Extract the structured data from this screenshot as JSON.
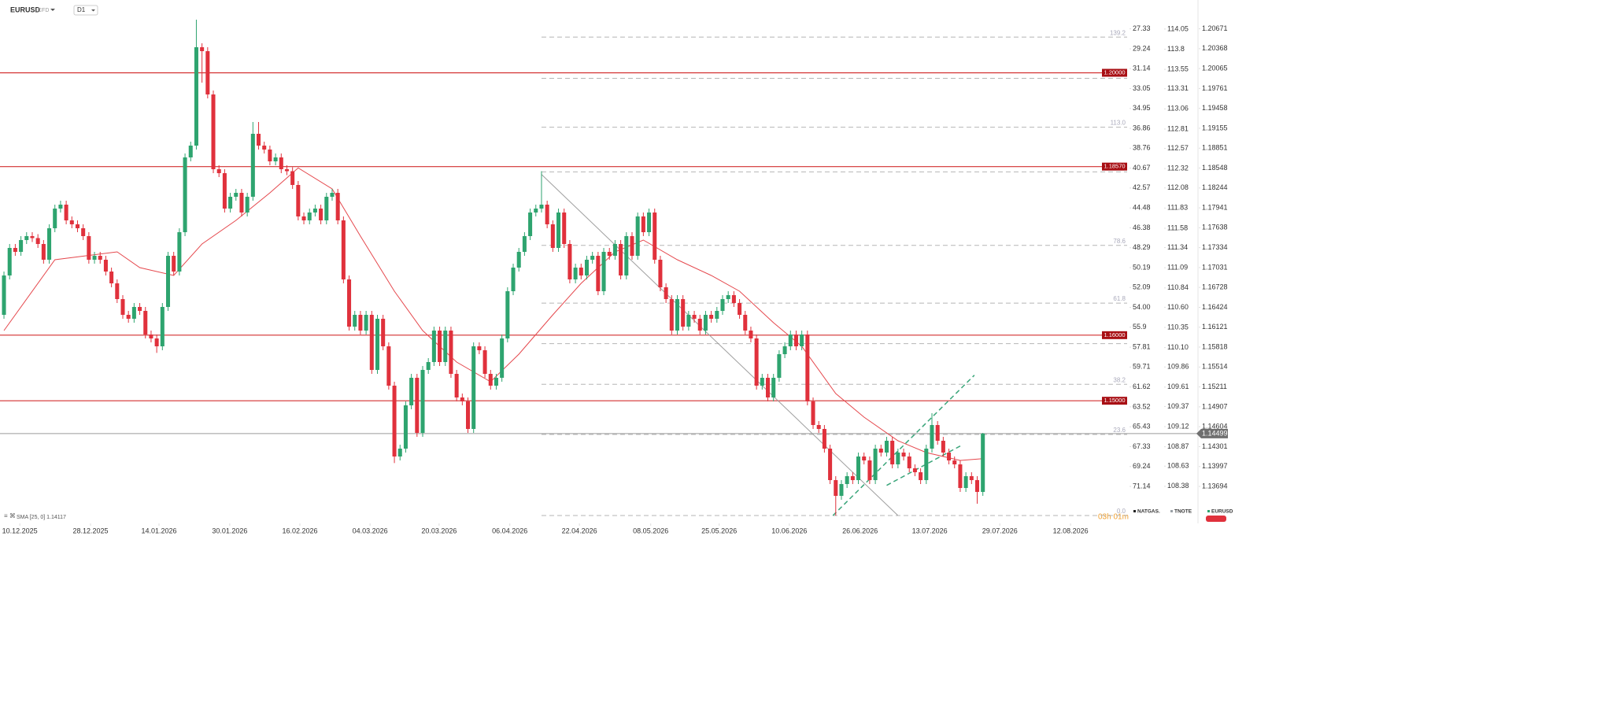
{
  "header": {
    "symbol": "EURUSD",
    "kind": "CFD",
    "timeframe": "D1",
    "timer": "03h 01m"
  },
  "chart_data": {
    "type": "candlestick",
    "up_color": "#2ea46f",
    "down_color": "#e0313c",
    "open": [
      1.1631,
      1.1691,
      1.1733,
      1.1727,
      1.1745,
      1.1751,
      1.1748,
      1.1739,
      1.1715,
      1.1763,
      1.1793,
      1.1799,
      1.1775,
      1.1769,
      1.1763,
      1.1751,
      1.1715,
      1.1721,
      1.1715,
      1.1697,
      1.1679,
      1.1655,
      1.1631,
      1.1625,
      1.1643,
      1.1637,
      1.1601,
      1.1595,
      1.1583,
      1.1643,
      1.1721,
      1.1697,
      1.1757,
      1.1871,
      1.1889,
      1.2039,
      1.2033,
      1.1967,
      1.1853,
      1.1847,
      1.1793,
      1.1811,
      1.1817,
      1.1787,
      1.1811,
      1.1907,
      1.1889,
      1.1883,
      1.1865,
      1.1871,
      1.1853,
      1.185,
      1.1829,
      1.1781,
      1.1775,
      1.1787,
      1.1793,
      1.1775,
      1.1811,
      1.1817,
      1.1775,
      1.1685,
      1.1613,
      1.1631,
      1.1607,
      1.1631,
      1.1547,
      1.1625,
      1.1583,
      1.1523,
      1.1415,
      1.1427,
      1.1493,
      1.1535,
      1.1451,
      1.1547,
      1.1559,
      1.1607,
      1.1559,
      1.1607,
      1.1541,
      1.1505,
      1.1499,
      1.1457,
      1.1583,
      1.1577,
      1.1541,
      1.1523,
      1.1535,
      1.1595,
      1.1667,
      1.1703,
      1.1727,
      1.1751,
      1.1787,
      1.1793,
      1.1799,
      1.1769,
      1.1733,
      1.1787,
      1.1739,
      1.1685,
      1.1703,
      1.1691,
      1.1715,
      1.1721,
      1.1667,
      1.1727,
      1.1721,
      1.1739,
      1.1691,
      1.1751,
      1.1721,
      1.1781,
      1.1757,
      1.1787,
      1.1715,
      1.1673,
      1.1655,
      1.1607,
      1.1655,
      1.1613,
      1.1631,
      1.1625,
      1.1607,
      1.1631,
      1.1625,
      1.1637,
      1.1655,
      1.1661,
      1.1649,
      1.1631,
      1.1607,
      1.1595,
      1.1523,
      1.1535,
      1.1505,
      1.1535,
      1.1571,
      1.1583,
      1.1601,
      1.1583,
      1.1601,
      1.1499,
      1.1463,
      1.1457,
      1.1427,
      1.1379,
      1.1355,
      1.1373,
      1.1385,
      1.1379,
      1.1415,
      1.1409,
      1.1379,
      1.1427,
      1.1421,
      1.1439,
      1.1403,
      1.1421,
      1.1415,
      1.1397,
      1.1391,
      1.1379,
      1.1427,
      1.1463,
      1.1439,
      1.1421,
      1.1409,
      1.1403,
      1.1367,
      1.1385,
      1.1379,
      1.1361
    ],
    "high": [
      1.1697,
      1.1739,
      1.1739,
      1.1751,
      1.1757,
      1.1757,
      1.1754,
      1.1745,
      1.1769,
      1.1799,
      1.1805,
      1.1805,
      1.1781,
      1.1775,
      1.1769,
      1.1757,
      1.1727,
      1.1727,
      1.1721,
      1.1703,
      1.1685,
      1.1661,
      1.1637,
      1.1649,
      1.1649,
      1.1643,
      1.1607,
      1.1601,
      1.1649,
      1.1727,
      1.1727,
      1.1763,
      1.1877,
      1.1895,
      1.2081,
      1.2045,
      1.2039,
      1.1973,
      1.1859,
      1.1853,
      1.1817,
      1.1823,
      1.1823,
      1.1817,
      1.1925,
      1.1925,
      1.1895,
      1.1889,
      1.1877,
      1.1877,
      1.1859,
      1.1856,
      1.1835,
      1.1787,
      1.1793,
      1.1799,
      1.1799,
      1.1817,
      1.1823,
      1.1823,
      1.1781,
      1.1691,
      1.1637,
      1.1637,
      1.1637,
      1.1637,
      1.1631,
      1.1631,
      1.1589,
      1.1529,
      1.1433,
      1.1499,
      1.1541,
      1.1541,
      1.1553,
      1.1565,
      1.1613,
      1.1613,
      1.1613,
      1.1613,
      1.1547,
      1.1511,
      1.1505,
      1.1589,
      1.1589,
      1.1583,
      1.1547,
      1.1541,
      1.1601,
      1.1673,
      1.1709,
      1.1733,
      1.1757,
      1.1793,
      1.1799,
      1.185,
      1.1805,
      1.1775,
      1.1793,
      1.1793,
      1.1745,
      1.1709,
      1.1709,
      1.1721,
      1.1727,
      1.1727,
      1.1733,
      1.1733,
      1.1745,
      1.1745,
      1.1757,
      1.1757,
      1.1787,
      1.1787,
      1.1793,
      1.1793,
      1.1721,
      1.1679,
      1.1661,
      1.1661,
      1.1661,
      1.1637,
      1.1637,
      1.1631,
      1.1637,
      1.1637,
      1.1643,
      1.1661,
      1.1667,
      1.1667,
      1.1655,
      1.1637,
      1.1613,
      1.1601,
      1.1541,
      1.1541,
      1.1541,
      1.1577,
      1.1589,
      1.1607,
      1.1607,
      1.1607,
      1.1607,
      1.1505,
      1.1469,
      1.1463,
      1.1433,
      1.1385,
      1.1379,
      1.1391,
      1.1391,
      1.1421,
      1.1421,
      1.1415,
      1.1433,
      1.1433,
      1.1445,
      1.1445,
      1.1427,
      1.1427,
      1.1421,
      1.1403,
      1.1397,
      1.1433,
      1.1481,
      1.1469,
      1.1445,
      1.1427,
      1.1415,
      1.1409,
      1.1391,
      1.1391,
      1.1385,
      1.1451
    ],
    "low": [
      1.1625,
      1.1685,
      1.1721,
      1.1721,
      1.1739,
      1.1742,
      1.1733,
      1.1709,
      1.1709,
      1.1757,
      1.1787,
      1.1769,
      1.1763,
      1.1757,
      1.1745,
      1.1709,
      1.1709,
      1.1709,
      1.1691,
      1.1673,
      1.1649,
      1.1625,
      1.1619,
      1.1619,
      1.1631,
      1.1595,
      1.1589,
      1.1573,
      1.1577,
      1.1637,
      1.1691,
      1.1691,
      1.1751,
      1.1865,
      1.1883,
      1.1985,
      1.1961,
      1.1847,
      1.1841,
      1.1787,
      1.1787,
      1.1805,
      1.1781,
      1.1781,
      1.1805,
      1.1883,
      1.1877,
      1.1859,
      1.1859,
      1.1847,
      1.1844,
      1.1823,
      1.1775,
      1.1769,
      1.1769,
      1.1781,
      1.1769,
      1.1769,
      1.1805,
      1.1769,
      1.1679,
      1.1607,
      1.1607,
      1.1601,
      1.1601,
      1.1541,
      1.1541,
      1.1577,
      1.1517,
      1.1405,
      1.1409,
      1.1421,
      1.1487,
      1.1445,
      1.1445,
      1.1541,
      1.1553,
      1.1553,
      1.1553,
      1.1535,
      1.1499,
      1.1493,
      1.1451,
      1.1451,
      1.1571,
      1.1535,
      1.1517,
      1.1517,
      1.1529,
      1.1589,
      1.1661,
      1.1697,
      1.1721,
      1.1745,
      1.1781,
      1.1787,
      1.1763,
      1.1727,
      1.1727,
      1.1733,
      1.1679,
      1.1679,
      1.1685,
      1.1685,
      1.1709,
      1.1661,
      1.1661,
      1.1715,
      1.1715,
      1.1685,
      1.1685,
      1.1715,
      1.1715,
      1.1751,
      1.1751,
      1.1709,
      1.1667,
      1.1649,
      1.1601,
      1.1601,
      1.1607,
      1.1607,
      1.1619,
      1.1601,
      1.1601,
      1.1619,
      1.1619,
      1.1631,
      1.1649,
      1.1643,
      1.1625,
      1.1601,
      1.1589,
      1.1517,
      1.1517,
      1.1499,
      1.1499,
      1.1529,
      1.1565,
      1.1577,
      1.1577,
      1.1577,
      1.1493,
      1.1457,
      1.1451,
      1.1421,
      1.1373,
      1.1325,
      1.1349,
      1.1367,
      1.1373,
      1.1373,
      1.1403,
      1.1373,
      1.1373,
      1.1415,
      1.1415,
      1.1397,
      1.1397,
      1.1409,
      1.1391,
      1.1385,
      1.1373,
      1.1373,
      1.1421,
      1.1433,
      1.1415,
      1.1403,
      1.1397,
      1.1361,
      1.1361,
      1.1373,
      1.1343,
      1.1355
    ],
    "close": [
      1.1691,
      1.1733,
      1.1727,
      1.1745,
      1.1751,
      1.1748,
      1.1739,
      1.1715,
      1.1763,
      1.1793,
      1.1799,
      1.1775,
      1.1769,
      1.1763,
      1.1751,
      1.1715,
      1.1721,
      1.1715,
      1.1697,
      1.1679,
      1.1655,
      1.1631,
      1.1625,
      1.1643,
      1.1637,
      1.1601,
      1.1595,
      1.1583,
      1.1643,
      1.1721,
      1.1697,
      1.1757,
      1.1871,
      1.1889,
      1.2039,
      1.2033,
      1.1967,
      1.1853,
      1.1847,
      1.1793,
      1.1811,
      1.1817,
      1.1787,
      1.1811,
      1.1907,
      1.1889,
      1.1883,
      1.1865,
      1.1871,
      1.1853,
      1.185,
      1.1829,
      1.1781,
      1.1775,
      1.1787,
      1.1793,
      1.1775,
      1.1811,
      1.1817,
      1.1775,
      1.1685,
      1.1613,
      1.1631,
      1.1607,
      1.1631,
      1.1547,
      1.1625,
      1.1583,
      1.1523,
      1.1415,
      1.1427,
      1.1493,
      1.1535,
      1.1451,
      1.1547,
      1.1559,
      1.1607,
      1.1559,
      1.1607,
      1.1541,
      1.1505,
      1.1499,
      1.1457,
      1.1583,
      1.1577,
      1.1541,
      1.1523,
      1.1535,
      1.1595,
      1.1667,
      1.1703,
      1.1727,
      1.1751,
      1.1787,
      1.1793,
      1.1799,
      1.1769,
      1.1733,
      1.1787,
      1.1739,
      1.1685,
      1.1703,
      1.1691,
      1.1715,
      1.1721,
      1.1667,
      1.1727,
      1.1721,
      1.1739,
      1.1691,
      1.1751,
      1.1721,
      1.1781,
      1.1757,
      1.1787,
      1.1715,
      1.1673,
      1.1655,
      1.1607,
      1.1655,
      1.1613,
      1.1631,
      1.1625,
      1.1607,
      1.1631,
      1.1625,
      1.1637,
      1.1655,
      1.1661,
      1.1649,
      1.1631,
      1.1607,
      1.1595,
      1.1523,
      1.1535,
      1.1505,
      1.1535,
      1.1571,
      1.1583,
      1.1601,
      1.1583,
      1.1601,
      1.1499,
      1.1463,
      1.1457,
      1.1427,
      1.1379,
      1.1355,
      1.1373,
      1.1385,
      1.1379,
      1.1415,
      1.1409,
      1.1379,
      1.1427,
      1.1421,
      1.1439,
      1.1403,
      1.1421,
      1.1415,
      1.1397,
      1.1391,
      1.1379,
      1.1427,
      1.1463,
      1.1439,
      1.1421,
      1.1409,
      1.1403,
      1.1367,
      1.1385,
      1.1379,
      1.1361,
      1.14499
    ],
    "xlim": [
      -0.7,
      198.5
    ],
    "xticks": [
      {
        "value": 2.8,
        "label": "10.12.2025"
      },
      {
        "value": 15.3,
        "label": "28.12.2025"
      },
      {
        "value": 27.4,
        "label": "14.01.2026"
      },
      {
        "value": 39.9,
        "label": "30.01.2026"
      },
      {
        "value": 52.3,
        "label": "16.02.2026"
      },
      {
        "value": 64.7,
        "label": "04.03.2026"
      },
      {
        "value": 76.9,
        "label": "20.03.2026"
      },
      {
        "value": 89.4,
        "label": "06.04.2026"
      },
      {
        "value": 101.7,
        "label": "22.04.2026"
      },
      {
        "value": 114.3,
        "label": "08.05.2026"
      },
      {
        "value": 126.4,
        "label": "25.05.2026"
      },
      {
        "value": 138.8,
        "label": "10.06.2026"
      },
      {
        "value": 151.3,
        "label": "26.06.2026"
      },
      {
        "value": 163.6,
        "label": "13.07.2026"
      },
      {
        "value": 176,
        "label": "29.07.2026"
      },
      {
        "value": 188.5,
        "label": "12.08.2026"
      }
    ],
    "ylim": [
      1.1313,
      1.2111
    ],
    "yticks": [
      1.20671,
      1.20368,
      1.20065,
      1.19761,
      1.19458,
      1.19155,
      1.18851,
      1.18548,
      1.18244,
      1.17941,
      1.17638,
      1.17334,
      1.17031,
      1.16728,
      1.16424,
      1.16121,
      1.15818,
      1.15514,
      1.15211,
      1.14907,
      1.14604,
      1.14301,
      1.13997,
      1.13694
    ],
    "y2lim": [
      107.92,
      114.41
    ],
    "y2ticks": [
      114.05,
      113.8,
      113.55,
      113.31,
      113.06,
      112.81,
      112.57,
      112.32,
      112.08,
      111.83,
      111.58,
      111.34,
      111.09,
      110.84,
      {
        "value": 110.6,
        "label": "110.60"
      },
      110.35,
      {
        "value": 110.1,
        "label": "110.10"
      },
      109.86,
      109.61,
      109.37,
      109.12,
      108.87,
      108.63,
      108.38
    ],
    "y3lim": [
      74.68,
      24.57
    ],
    "y3ticks": [
      27.33,
      29.24,
      31.14,
      33.05,
      34.95,
      36.86,
      38.76,
      40.67,
      42.57,
      44.48,
      46.38,
      48.29,
      50.19,
      52.09,
      {
        "value": 54,
        "label": "54.00"
      },
      55.9,
      57.81,
      59.71,
      61.62,
      63.52,
      65.43,
      67.33,
      69.24,
      71.14
    ],
    "current": 1.14499,
    "levels": [
      {
        "value": 1.2,
        "label": "1.20000"
      },
      {
        "value": 1.1857,
        "label": "1.18570"
      },
      {
        "value": 1.16,
        "label": "1.16000"
      },
      {
        "value": 1.15,
        "label": "1.15000"
      }
    ],
    "level_color": "#d32f2f",
    "sma": {
      "name": "SMA [25, 0] 1.14117",
      "color": "#e5484d",
      "x": [
        0,
        9,
        20,
        24,
        30,
        35,
        41,
        47,
        52,
        58,
        63,
        69,
        74,
        80,
        86,
        91,
        97,
        102,
        108,
        113,
        119,
        125,
        130,
        136,
        141,
        147,
        152,
        158,
        163,
        169,
        173
      ],
      "values": [
        1.1607,
        1.1715,
        1.1727,
        1.1703,
        1.1691,
        1.1739,
        1.1775,
        1.1817,
        1.1855,
        1.1823,
        1.1751,
        1.1667,
        1.1607,
        1.1559,
        1.1529,
        1.1571,
        1.1631,
        1.1679,
        1.1727,
        1.1745,
        1.1715,
        1.1691,
        1.1667,
        1.1619,
        1.1583,
        1.1511,
        1.1475,
        1.1439,
        1.1421,
        1.1409,
        1.14117
      ]
    },
    "fib": {
      "low": 1.1325,
      "high": 1.1849,
      "start": 95,
      "levels": [
        {
          "value": 0,
          "label": "0.0"
        },
        {
          "value": 23.6,
          "label": "23.6"
        },
        {
          "value": 38.2,
          "label": "38.2"
        },
        {
          "value": 50
        },
        {
          "value": 61.8,
          "label": "61.8"
        },
        {
          "value": 78.6,
          "label": "78.6"
        },
        {
          "value": 100
        },
        {
          "value": 113,
          "label": "113.0"
        },
        {
          "value": 127.2
        },
        {
          "value": 139.2,
          "label": "139.2"
        }
      ]
    },
    "drawings": [
      {
        "x": [
          95,
          158
        ],
        "y": [
          1.1845,
          1.1325
        ],
        "color": "#9e9e9e",
        "dashed": false
      },
      {
        "x": [
          146.5,
          171.5
        ],
        "y": [
          1.1325,
          1.1539
        ],
        "color": "#3aa57a",
        "dashed": true
      },
      {
        "x": [
          156,
          169
        ],
        "y": [
          1.1371,
          1.1431
        ],
        "color": "#3aa57a",
        "dashed": true
      }
    ],
    "legend": [
      {
        "name": "NATGAS.",
        "color": "#222"
      },
      {
        "name": "TNOTE",
        "color": "#9aa0a6"
      },
      {
        "name": "EURUSD",
        "color": "#2ea46f"
      }
    ]
  }
}
